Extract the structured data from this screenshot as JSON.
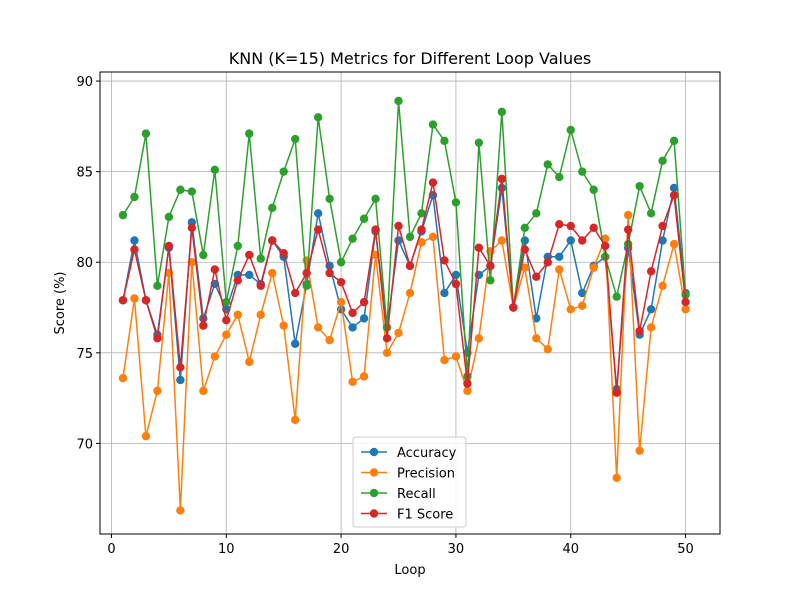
{
  "chart_data": {
    "type": "line",
    "title": "KNN (K=15) Metrics for Different Loop Values",
    "xlabel": "Loop",
    "ylabel": "Score (%)",
    "xlim": [
      -1,
      53
    ],
    "ylim": [
      65,
      90.5
    ],
    "xticks": [
      0,
      10,
      20,
      30,
      40,
      50
    ],
    "yticks": [
      70,
      75,
      80,
      85,
      90
    ],
    "grid": true,
    "legend_position": "lower-center",
    "x": [
      1,
      2,
      3,
      4,
      5,
      6,
      7,
      8,
      9,
      10,
      11,
      12,
      13,
      14,
      15,
      16,
      17,
      18,
      19,
      20,
      21,
      22,
      23,
      24,
      25,
      26,
      27,
      28,
      29,
      30,
      31,
      32,
      33,
      34,
      35,
      36,
      37,
      38,
      39,
      40,
      41,
      42,
      43,
      44,
      45,
      46,
      47,
      48,
      49,
      50
    ],
    "series": [
      {
        "name": "Accuracy",
        "color": "#1f77b4",
        "values": [
          77.9,
          81.2,
          77.9,
          76.0,
          80.8,
          73.5,
          82.2,
          76.9,
          78.8,
          77.4,
          79.3,
          79.3,
          78.8,
          81.2,
          80.3,
          75.5,
          78.8,
          82.7,
          79.8,
          77.4,
          76.4,
          76.9,
          81.7,
          76.4,
          81.2,
          79.8,
          81.7,
          83.7,
          78.3,
          79.3,
          75.0,
          79.3,
          79.8,
          84.1,
          77.5,
          81.2,
          76.9,
          80.3,
          80.3,
          81.2,
          78.3,
          79.8,
          80.3,
          73.0,
          80.8,
          76.0,
          77.4,
          81.2,
          84.1,
          78.3
        ]
      },
      {
        "name": "Precision",
        "color": "#ff7f0e",
        "values": [
          73.6,
          78.0,
          70.4,
          72.9,
          79.4,
          66.3,
          80.0,
          72.9,
          74.8,
          76.0,
          77.1,
          74.5,
          77.1,
          79.4,
          76.5,
          71.3,
          80.1,
          76.4,
          75.7,
          77.8,
          73.4,
          73.7,
          80.4,
          75.0,
          76.1,
          78.3,
          81.1,
          81.4,
          74.6,
          74.8,
          72.9,
          75.8,
          80.6,
          81.2,
          77.5,
          79.7,
          75.8,
          75.2,
          79.6,
          77.4,
          77.6,
          79.7,
          81.3,
          68.1,
          82.6,
          69.6,
          76.4,
          78.7,
          81.0,
          77.4
        ]
      },
      {
        "name": "Recall",
        "color": "#2ca02c",
        "values": [
          82.6,
          83.6,
          87.1,
          78.7,
          82.5,
          84.0,
          83.9,
          80.4,
          85.1,
          77.8,
          80.9,
          87.1,
          80.2,
          83.0,
          85.0,
          86.8,
          78.7,
          88.0,
          83.5,
          80.0,
          81.3,
          82.4,
          83.5,
          76.4,
          88.9,
          81.4,
          82.7,
          87.6,
          86.7,
          83.3,
          73.7,
          86.6,
          79.0,
          88.3,
          77.5,
          81.9,
          82.7,
          85.4,
          84.7,
          87.3,
          85.0,
          84.0,
          80.3,
          78.1,
          81.0,
          84.2,
          82.7,
          85.6,
          86.7,
          78.2
        ]
      },
      {
        "name": "F1 Score",
        "color": "#d62728",
        "values": [
          77.9,
          80.7,
          77.9,
          75.8,
          80.9,
          74.2,
          81.9,
          76.5,
          79.6,
          76.8,
          79.0,
          80.4,
          78.7,
          81.2,
          80.5,
          78.3,
          79.4,
          81.8,
          79.4,
          78.9,
          77.2,
          77.8,
          81.8,
          75.8,
          82.0,
          79.8,
          81.8,
          84.4,
          80.1,
          78.8,
          73.3,
          80.8,
          79.8,
          84.6,
          77.5,
          80.7,
          79.2,
          80.0,
          82.1,
          82.0,
          81.2,
          81.9,
          80.9,
          72.8,
          81.8,
          76.2,
          79.5,
          82.0,
          83.7,
          77.8
        ]
      }
    ]
  }
}
